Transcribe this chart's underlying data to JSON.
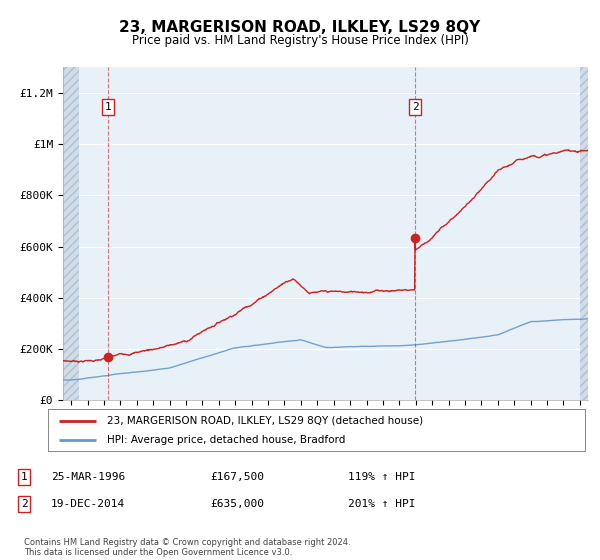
{
  "title": "23, MARGERISON ROAD, ILKLEY, LS29 8QY",
  "subtitle": "Price paid vs. HM Land Registry's House Price Index (HPI)",
  "ylim": [
    0,
    1300000
  ],
  "yticks": [
    0,
    200000,
    400000,
    600000,
    800000,
    1000000,
    1200000
  ],
  "ytick_labels": [
    "£0",
    "£200K",
    "£400K",
    "£600K",
    "£800K",
    "£1M",
    "£1.2M"
  ],
  "background_color": "#e8f0f8",
  "grid_color": "#ffffff",
  "line1_color": "#cc2222",
  "line2_color": "#6699cc",
  "purchase1_date_x": 1996.23,
  "purchase1_price": 167500,
  "purchase2_date_x": 2014.97,
  "purchase2_price": 635000,
  "legend_line1": "23, MARGERISON ROAD, ILKLEY, LS29 8QY (detached house)",
  "legend_line2": "HPI: Average price, detached house, Bradford",
  "purchase1_display": "25-MAR-1996",
  "purchase1_amount": "£167,500",
  "purchase1_hpi": "119% ↑ HPI",
  "purchase2_display": "19-DEC-2014",
  "purchase2_amount": "£635,000",
  "purchase2_hpi": "201% ↑ HPI",
  "footer": "Contains HM Land Registry data © Crown copyright and database right 2024.\nThis data is licensed under the Open Government Licence v3.0.",
  "xlim_left": 1993.5,
  "xlim_right": 2025.5,
  "hatch_right_start": 2025.0,
  "hatch_left_end": 1994.5
}
